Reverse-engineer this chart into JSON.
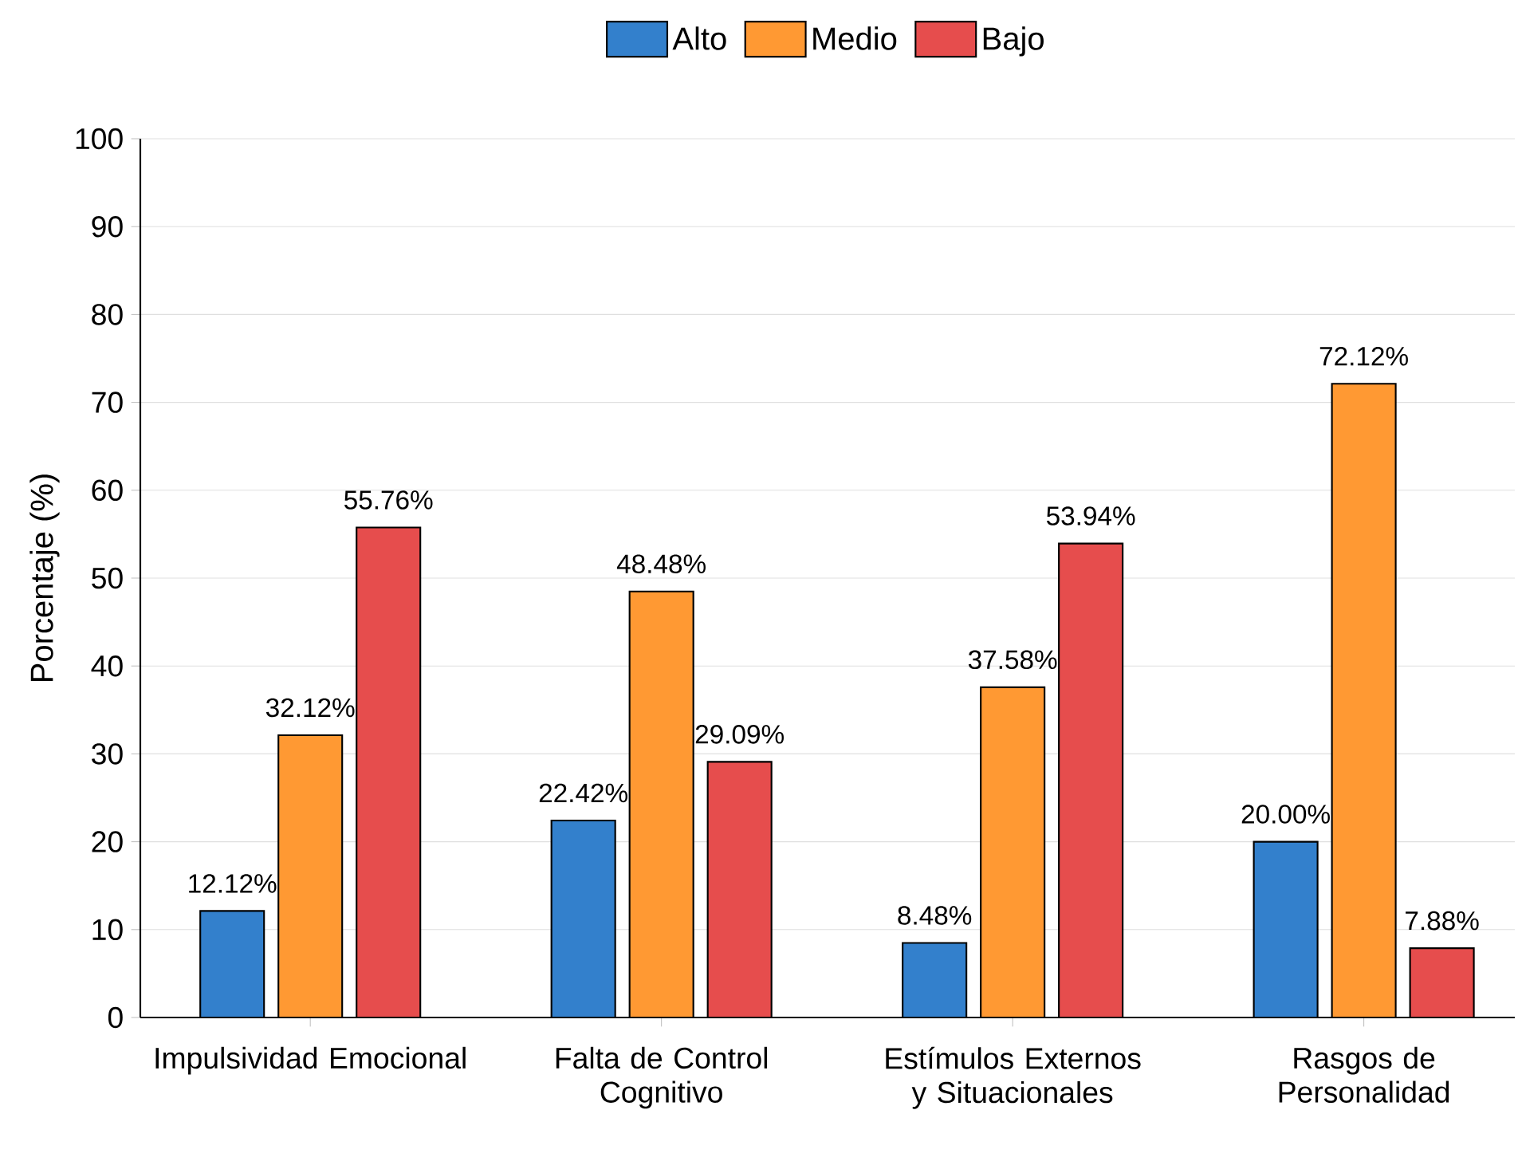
{
  "chart_data": {
    "type": "bar",
    "ylabel": "Porcentaje (%)",
    "categories": [
      "Impulsividad Emocional",
      "Falta de Control Cognitivo",
      "Estímulos Externos y Situacionales",
      "Rasgos de Personalidad"
    ],
    "series": [
      {
        "name": "Alto",
        "color": "#3380cc",
        "values": [
          12.12,
          22.42,
          8.48,
          20.0
        ],
        "value_labels": [
          "12.12%",
          "22.42%",
          "8.48%",
          "20.00%"
        ]
      },
      {
        "name": "Medio",
        "color": "#ff9933",
        "values": [
          32.12,
          48.48,
          37.58,
          72.12
        ],
        "value_labels": [
          "32.12%",
          "48.48%",
          "37.58%",
          "72.12%"
        ]
      },
      {
        "name": "Bajo",
        "color": "#e64d4d",
        "values": [
          55.76,
          29.09,
          53.94,
          7.88
        ],
        "value_labels": [
          "55.76%",
          "29.09%",
          "53.94%",
          "7.88%"
        ]
      }
    ],
    "ylim": [
      0,
      100
    ],
    "yticks": [
      0,
      10,
      20,
      30,
      40,
      50,
      60,
      70,
      80,
      90,
      100
    ],
    "grid": "y",
    "legend": "top"
  }
}
